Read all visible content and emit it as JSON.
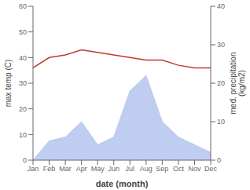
{
  "chart_data": {
    "type": "line",
    "xlabel": "date (month)",
    "ylabel": "max temp (C)",
    "y2label": "med. precipitation\n(kg/m2)",
    "categories": [
      "Jan",
      "Feb",
      "Mar",
      "Apr",
      "May",
      "Jun",
      "Jul",
      "Aug",
      "Sep",
      "Oct",
      "Nov",
      "Dec"
    ],
    "series": [
      {
        "type": "area",
        "color": "#b8c8f0",
        "axis": "y2",
        "values": [
          0,
          5,
          6,
          10,
          4,
          6,
          18,
          22,
          10,
          6,
          4,
          2
        ]
      },
      {
        "type": "line",
        "color": "#c0392b",
        "values": [
          36,
          40,
          41,
          43,
          42,
          41,
          40,
          39,
          39,
          37,
          36,
          36
        ]
      }
    ],
    "ylim": [
      0,
      60
    ],
    "yticks": [
      0,
      10,
      20,
      30,
      40,
      50,
      60
    ],
    "y2lim": [
      0,
      40
    ],
    "y2ticks": [
      0,
      10,
      20,
      30,
      40
    ],
    "grid": false
  }
}
